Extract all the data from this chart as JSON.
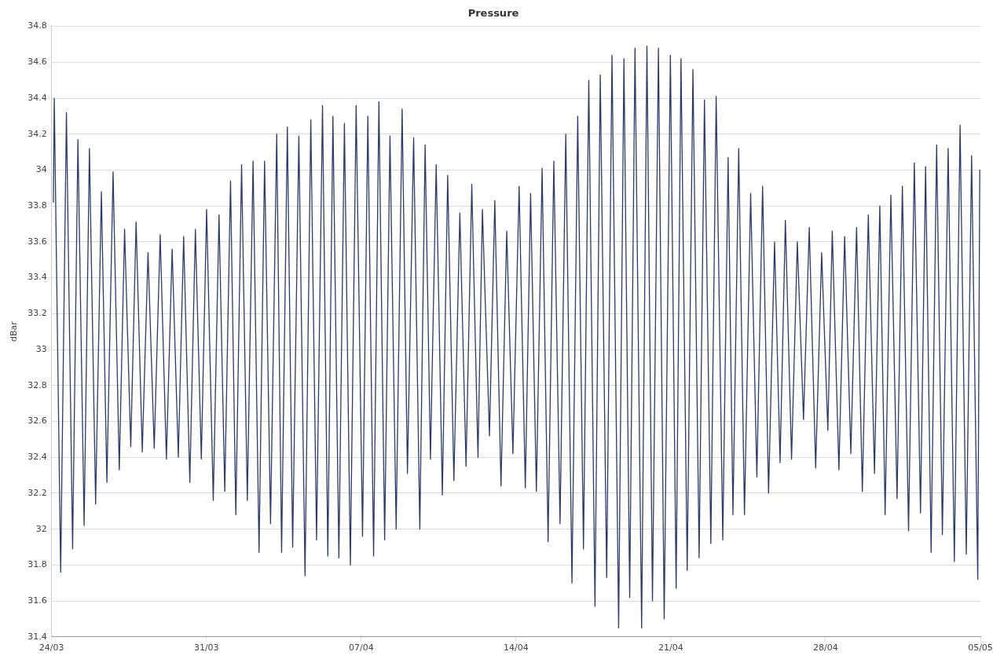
{
  "chart_data": {
    "type": "line",
    "title": "Pressure",
    "ylabel": "dBar",
    "xlim": [
      "--03-24",
      "--05-05"
    ],
    "xticks": [
      {
        "value": "--03-24",
        "label": "24/03"
      },
      {
        "value": "--03-31",
        "label": "31/03"
      },
      {
        "value": "--04-07",
        "label": "07/04"
      },
      {
        "value": "--04-14",
        "label": "14/04"
      },
      {
        "value": "--04-21",
        "label": "21/04"
      },
      {
        "value": "--04-28",
        "label": "28/04"
      },
      {
        "value": "--05-05",
        "label": "05/05"
      }
    ],
    "ylim": [
      31.4,
      34.8
    ],
    "yticks": [
      31.4,
      31.6,
      31.8,
      32,
      32.2,
      32.4,
      32.6,
      32.8,
      33,
      33.2,
      33.4,
      33.6,
      33.8,
      34,
      34.2,
      34.4,
      34.6,
      34.8
    ],
    "grid": "y",
    "legend": false,
    "marker": "none",
    "line_style": "solid",
    "series": [
      {
        "color": "#2b3a67",
        "x": [
          "--03-24T01:55",
          "--03-24T02:53",
          "--03-24T09:50",
          "--03-24T16:05",
          "--03-24T22:48",
          "--03-25T04:34",
          "--03-25T11:17",
          "--03-25T17:02",
          "--03-25T23:46",
          "--03-26T06:00",
          "--03-26T12:00",
          "--03-26T18:43",
          "--03-27T01:26",
          "--03-27T07:12",
          "--03-27T13:55",
          "--03-27T19:41",
          "--03-28T02:24",
          "--03-28T08:38",
          "--03-28T15:22",
          "--03-28T21:50",
          "--03-29T04:34",
          "--03-29T10:48",
          "--03-29T17:31",
          "--03-29T23:17",
          "--03-30T06:00",
          "--03-30T12:00",
          "--03-30T18:29",
          "--03-31T00:14",
          "--03-31T07:26",
          "--03-31T13:41",
          "--03-31T19:55",
          "--04-01T02:10",
          "--04-01T07:55",
          "--04-01T14:10",
          "--04-01T20:24",
          "--04-02T02:38",
          "--04-02T09:07",
          "--04-02T15:07",
          "--04-02T21:36",
          "--04-03T04:19",
          "--04-03T09:36",
          "--04-03T15:50",
          "--04-03T21:36",
          "--04-04T04:19",
          "--04-04T11:02",
          "--04-04T17:17",
          "--04-04T23:31",
          "--04-05T06:00",
          "--04-05T11:46",
          "--04-05T17:17",
          "--04-05T23:46",
          "--04-06T05:46",
          "--04-06T12:14",
          "--04-06T18:29",
          "--04-07T01:26",
          "--04-07T07:12",
          "--04-07T13:26",
          "--04-07T19:12",
          "--04-08T01:26",
          "--04-08T07:12",
          "--04-08T13:55",
          "--04-08T20:24",
          "--04-09T02:10",
          "--04-09T08:53",
          "--04-09T15:36",
          "--04-09T21:22",
          "--04-10T03:07",
          "--04-10T09:22",
          "--04-10T16:05",
          "--04-10T21:50",
          "--04-11T04:34",
          "--04-11T11:02",
          "--04-11T17:46",
          "--04-12T00:00",
          "--04-12T06:43",
          "--04-12T11:31",
          "--04-12T19:12",
          "--04-13T00:58",
          "--04-13T07:41",
          "--04-13T13:55",
          "--04-13T20:38",
          "--04-14T03:22",
          "--04-14T10:05",
          "--04-14T15:50",
          "--04-14T22:05",
          "--04-15T04:19",
          "--04-15T10:48",
          "--04-15T17:02",
          "--04-15T23:46",
          "--04-16T06:00",
          "--04-16T12:43",
          "--04-16T18:58",
          "--04-17T01:12",
          "--04-17T06:58",
          "--04-17T13:41",
          "--04-17T19:26",
          "--04-18T02:24",
          "--04-18T08:10",
          "--04-18T15:22",
          "--04-18T21:07",
          "--04-19T03:22",
          "--04-19T09:07",
          "--04-19T16:19",
          "--04-19T22:05",
          "--04-20T04:05",
          "--04-20T10:34",
          "--04-20T16:48",
          "--04-20T23:31",
          "--04-21T05:46",
          "--04-21T11:02",
          "--04-21T17:46",
          "--04-22T00:00",
          "--04-22T06:43",
          "--04-22T12:29",
          "--04-22T19:26",
          "--04-23T01:12",
          "--04-23T08:24",
          "--04-23T14:10",
          "--04-23T19:26",
          "--04-24T01:41",
          "--04-24T07:55",
          "--04-24T14:38",
          "--04-24T21:22",
          "--04-25T03:36",
          "--04-25T10:05",
          "--04-25T16:34",
          "--04-25T22:34",
          "--04-26T04:19",
          "--04-26T11:02",
          "--04-26T17:17",
          "--04-27T00:00",
          "--04-27T06:14",
          "--04-27T13:12",
          "--04-27T19:41",
          "--04-28T02:24",
          "--04-28T07:12",
          "--04-28T14:24",
          "--04-28T20:38",
          "--04-29T03:22",
          "--04-29T09:36",
          "--04-29T15:50",
          "--04-29T22:19",
          "--04-30T05:02",
          "--04-30T10:48",
          "--04-30T16:34",
          "--04-30T22:48",
          "--05-01T05:31",
          "--05-01T11:17",
          "--05-01T18:00",
          "--05-02T00:14",
          "--05-02T06:58",
          "--05-02T12:29",
          "--05-02T18:29",
          "--05-03T00:29",
          "--05-03T06:43",
          "--05-03T12:58",
          "--05-03T19:41",
          "--05-04T01:55",
          "--05-04T08:38",
          "--05-04T14:24",
          "--05-04T21:07",
          "--05-04T23:17"
        ],
        "values": [
          33.82,
          34.4,
          31.76,
          34.32,
          31.89,
          34.17,
          32.02,
          34.12,
          32.14,
          33.88,
          32.26,
          33.99,
          32.33,
          33.67,
          32.46,
          33.71,
          32.43,
          33.54,
          32.45,
          33.64,
          32.39,
          33.56,
          32.4,
          33.63,
          32.26,
          33.67,
          32.39,
          33.78,
          32.16,
          33.75,
          32.21,
          33.94,
          32.08,
          34.03,
          32.16,
          34.05,
          31.87,
          34.05,
          32.03,
          34.2,
          31.87,
          34.24,
          31.9,
          34.19,
          31.74,
          34.28,
          31.94,
          34.36,
          31.85,
          34.3,
          31.84,
          34.26,
          31.8,
          34.36,
          31.96,
          34.3,
          31.85,
          34.38,
          31.94,
          34.19,
          32.0,
          34.34,
          32.31,
          34.18,
          32.0,
          34.14,
          32.39,
          34.03,
          32.19,
          33.97,
          32.27,
          33.76,
          32.35,
          33.92,
          32.4,
          33.78,
          32.52,
          33.83,
          32.24,
          33.66,
          32.42,
          33.91,
          32.23,
          33.87,
          32.21,
          34.01,
          31.93,
          34.05,
          32.03,
          34.2,
          31.7,
          34.3,
          31.89,
          34.5,
          31.57,
          34.53,
          31.73,
          34.64,
          31.45,
          34.62,
          31.62,
          34.68,
          31.45,
          34.69,
          31.6,
          34.68,
          31.5,
          34.64,
          31.67,
          34.62,
          31.77,
          34.56,
          31.84,
          34.39,
          31.92,
          34.41,
          31.94,
          34.07,
          32.08,
          34.12,
          32.08,
          33.87,
          32.29,
          33.91,
          32.2,
          33.6,
          32.37,
          33.72,
          32.39,
          33.6,
          32.61,
          33.68,
          32.34,
          33.54,
          32.55,
          33.66,
          32.33,
          33.63,
          32.42,
          33.68,
          32.21,
          33.75,
          32.31,
          33.8,
          32.08,
          33.86,
          32.17,
          33.91,
          31.99,
          34.04,
          32.09,
          34.02,
          31.87,
          34.14,
          31.97,
          34.12,
          31.82,
          34.25,
          31.86,
          34.08,
          31.72,
          34.0
        ]
      }
    ]
  }
}
